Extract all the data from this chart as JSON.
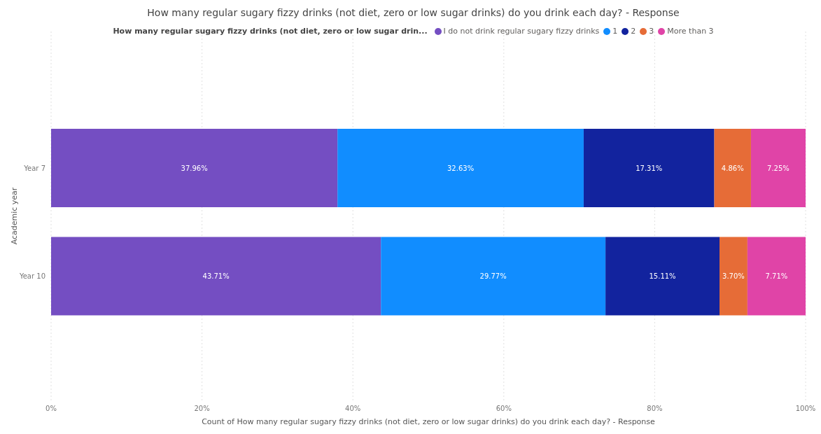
{
  "chart_data": {
    "type": "bar",
    "orientation": "horizontal",
    "stacked": true,
    "title": "How many regular sugary fizzy drinks (not diet, zero or low sugar drinks) do you drink each day? - Response",
    "legend_title": "How many regular sugary fizzy drinks (not diet, zero or low sugar drin...",
    "xlabel": "Count of How many regular sugary fizzy drinks (not diet, zero or low sugar drinks) do you drink each day? - Response",
    "ylabel": "Academic year",
    "categories": [
      "Year 7",
      "Year 10"
    ],
    "series": [
      {
        "name": "I do not drink regular sugary fizzy drinks",
        "color": "#744ec2",
        "values": [
          37.96,
          43.71
        ],
        "value_labels": [
          "37.96%",
          "43.71%"
        ]
      },
      {
        "name": "1",
        "color": "#118dff",
        "values": [
          32.63,
          29.77
        ],
        "value_labels": [
          "32.63%",
          "29.77%"
        ]
      },
      {
        "name": "2",
        "color": "#12239e",
        "values": [
          17.31,
          15.11
        ],
        "value_labels": [
          "17.31%",
          "15.11%"
        ]
      },
      {
        "name": "3",
        "color": "#e66c37",
        "values": [
          4.86,
          3.7
        ],
        "value_labels": [
          "4.86%",
          "3.70%"
        ]
      },
      {
        "name": "More than 3",
        "color": "#e044a7",
        "values": [
          7.25,
          7.71
        ],
        "value_labels": [
          "7.25%",
          "7.71%"
        ]
      }
    ],
    "xlim": [
      0,
      100
    ],
    "xticks": [
      {
        "value": 0,
        "label": "0%"
      },
      {
        "value": 20,
        "label": "20%"
      },
      {
        "value": 40,
        "label": "40%"
      },
      {
        "value": 60,
        "label": "60%"
      },
      {
        "value": 80,
        "label": "80%"
      },
      {
        "value": 100,
        "label": "100%"
      }
    ],
    "grid": "x",
    "legend": "top"
  }
}
